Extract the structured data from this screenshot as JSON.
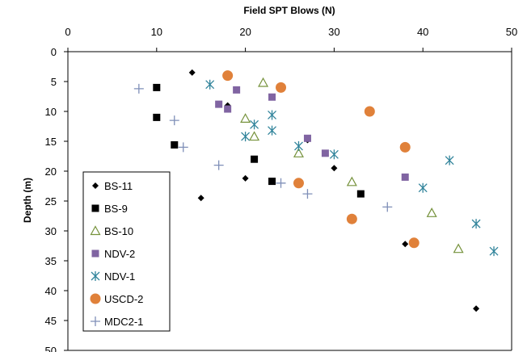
{
  "chart_data": {
    "type": "scatter",
    "title": "Field SPT Blows (N)",
    "xlabel": "Field SPT Blows (N)",
    "ylabel": "Depth (m)",
    "xlim": [
      0,
      50
    ],
    "ylim": [
      0,
      50
    ],
    "y_inverted": true,
    "x_axis_position": "top",
    "x_ticks": [
      "0",
      "10",
      "20",
      "30",
      "40",
      "50"
    ],
    "y_ticks": [
      "0",
      "5",
      "10",
      "15",
      "20",
      "25",
      "30",
      "35",
      "40",
      "45",
      "50"
    ],
    "grid": false,
    "legend_position": "left",
    "series": [
      {
        "name": "BS-11",
        "marker": "diamond",
        "color": "#000000",
        "points": [
          [
            14,
            3.5
          ],
          [
            18,
            9
          ],
          [
            27,
            14.8
          ],
          [
            30,
            19.5
          ],
          [
            20,
            21.2
          ],
          [
            15,
            24.5
          ],
          [
            38,
            32.2
          ],
          [
            46,
            43
          ]
        ]
      },
      {
        "name": "BS-9",
        "marker": "square",
        "color": "#000000",
        "points": [
          [
            10,
            6
          ],
          [
            10,
            11
          ],
          [
            12,
            15.6
          ],
          [
            21,
            18
          ],
          [
            23,
            21.7
          ],
          [
            33,
            23.8
          ]
        ]
      },
      {
        "name": "BS-10",
        "marker": "triangle-open",
        "color": "#76923C",
        "points": [
          [
            22,
            5.2
          ],
          [
            20,
            11.2
          ],
          [
            21,
            14.2
          ],
          [
            26,
            17
          ],
          [
            32,
            21.8
          ],
          [
            41,
            27
          ],
          [
            44,
            33
          ]
        ]
      },
      {
        "name": "NDV-2",
        "marker": "square",
        "color": "#8064A2",
        "points": [
          [
            19,
            6.4
          ],
          [
            23,
            7.6
          ],
          [
            17,
            8.8
          ],
          [
            18,
            9.6
          ],
          [
            27,
            14.5
          ],
          [
            29,
            17
          ],
          [
            38,
            21
          ]
        ]
      },
      {
        "name": "NDV-1",
        "marker": "asterisk",
        "color": "#31849B",
        "points": [
          [
            16,
            5.5
          ],
          [
            23,
            10.6
          ],
          [
            21,
            12.2
          ],
          [
            23,
            13.2
          ],
          [
            20,
            14.2
          ],
          [
            26,
            15.8
          ],
          [
            30,
            17.2
          ],
          [
            43,
            18.2
          ],
          [
            40,
            22.8
          ],
          [
            46,
            28.8
          ],
          [
            48,
            33.4
          ]
        ]
      },
      {
        "name": "USCD-2",
        "marker": "circle",
        "color": "#E0813A",
        "points": [
          [
            18,
            4
          ],
          [
            24,
            6
          ],
          [
            34,
            10
          ],
          [
            38,
            16
          ],
          [
            26,
            22
          ],
          [
            32,
            28
          ],
          [
            39,
            32
          ]
        ]
      },
      {
        "name": "MDC2-1",
        "marker": "plus",
        "color": "#7F8FB8",
        "points": [
          [
            8,
            6.2
          ],
          [
            12,
            11.5
          ],
          [
            13,
            16
          ],
          [
            17,
            19
          ],
          [
            24,
            22
          ],
          [
            27,
            23.8
          ],
          [
            36,
            26
          ]
        ]
      }
    ]
  }
}
